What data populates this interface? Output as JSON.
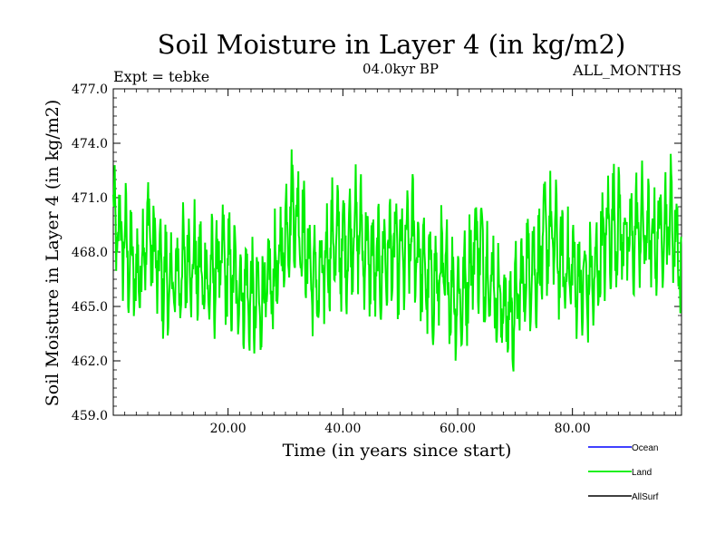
{
  "chart_data": {
    "type": "line",
    "title": "Soil Moisture in Layer 4 (in kg/m2)",
    "subtitle_left": "Expt = tebke",
    "subtitle_center": "04.0kyr BP",
    "subtitle_right": "ALL_MONTHS",
    "xlabel": "Time (in years since start)",
    "ylabel": "Soil Moisture in Layer 4 (in kg/m2)",
    "xlim": [
      0.0,
      99.0
    ],
    "ylim": [
      459.0,
      477.0
    ],
    "x_ticks": [
      20,
      40,
      60,
      80
    ],
    "x_tick_labels": [
      "20.00",
      "40.00",
      "60.00",
      "80.00"
    ],
    "y_ticks": [
      459,
      462,
      465,
      468,
      471,
      474,
      477
    ],
    "y_tick_labels": [
      "459.0",
      "462.0",
      "465.0",
      "468.0",
      "471.0",
      "474.0",
      "477.0"
    ],
    "legend": [
      {
        "name": "Ocean",
        "color": "#0000ff"
      },
      {
        "name": "Land",
        "color": "#00ee00"
      },
      {
        "name": "AllSurf",
        "color": "#000000"
      }
    ],
    "series": [
      {
        "name": "Land",
        "color": "#00ee00",
        "x_start": 0.0,
        "x_step": 0.0833,
        "anchors_x": [
          0,
          1,
          2,
          3,
          4,
          5,
          6,
          7,
          8,
          9,
          10,
          11,
          12,
          13,
          14,
          15,
          16,
          17,
          18,
          19,
          20,
          21,
          22,
          23,
          24,
          25,
          26,
          27,
          28,
          29,
          30,
          31,
          32,
          33,
          34,
          35,
          36,
          37,
          38,
          39,
          40,
          41,
          42,
          43,
          44,
          45,
          46,
          47,
          48,
          49,
          50,
          51,
          52,
          53,
          54,
          55,
          56,
          57,
          58,
          59,
          60,
          61,
          62,
          63,
          64,
          65,
          66,
          67,
          68,
          69,
          70,
          71,
          72,
          73,
          74,
          75,
          76,
          77,
          78,
          79,
          80,
          81,
          82,
          83,
          84,
          85,
          86,
          87,
          88,
          89,
          90,
          91,
          92,
          93,
          94,
          95,
          96,
          97,
          98,
          99
        ],
        "anchors_y": [
          469.5,
          469.0,
          468.5,
          467.5,
          466.5,
          467.5,
          469.5,
          468.0,
          467.0,
          466.5,
          466.0,
          466.5,
          467.0,
          467.5,
          467.5,
          467.0,
          466.5,
          466.5,
          467.0,
          467.5,
          467.0,
          466.5,
          466.0,
          466.0,
          465.5,
          465.0,
          465.5,
          466.0,
          466.5,
          467.5,
          469.0,
          470.5,
          470.0,
          469.0,
          467.5,
          466.5,
          466.0,
          467.5,
          468.5,
          468.5,
          468.0,
          468.5,
          469.5,
          469.0,
          468.0,
          467.5,
          467.0,
          467.5,
          468.0,
          468.0,
          467.5,
          468.0,
          469.0,
          468.0,
          467.0,
          466.5,
          466.0,
          467.0,
          466.5,
          466.0,
          465.5,
          465.5,
          467.0,
          468.5,
          468.0,
          467.0,
          466.5,
          465.5,
          465.0,
          464.5,
          465.0,
          466.0,
          467.0,
          467.5,
          467.0,
          468.5,
          469.0,
          468.5,
          467.5,
          467.0,
          467.0,
          466.5,
          466.0,
          466.5,
          466.5,
          468.0,
          469.0,
          469.5,
          469.5,
          469.0,
          468.5,
          469.0,
          469.5,
          469.0,
          468.5,
          469.0,
          469.5,
          470.0,
          469.0,
          467.0
        ],
        "amplitude_kg_m2": 2.6
      }
    ]
  }
}
